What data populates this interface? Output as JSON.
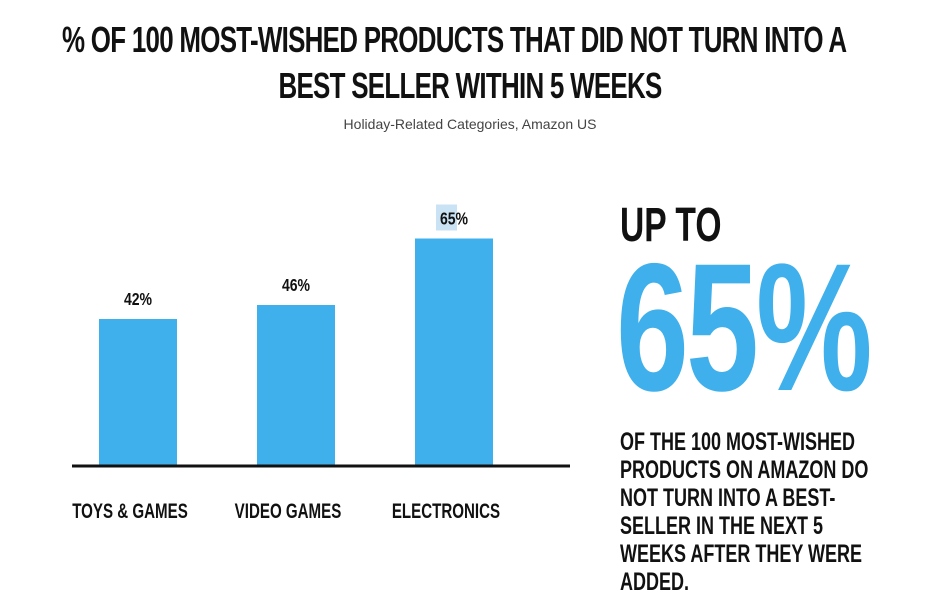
{
  "title_line_1": "% OF 100 MOST-WISHED PRODUCTS THAT DID NOT TURN INTO A",
  "title_line_2": "BEST SELLER WITHIN 5 WEEKS",
  "subtitle": "Holiday-Related Categories, Amazon US",
  "colors": {
    "bar": "#3fb0ec",
    "highlight": "#c9e3f4",
    "text": "#111111"
  },
  "chart_data": {
    "type": "bar",
    "categories": [
      "TOYS & GAMES",
      "VIDEO GAMES",
      "ELECTRONICS"
    ],
    "values": [
      42,
      46,
      65
    ],
    "value_labels": [
      "42%",
      "46%",
      "65%"
    ],
    "highlighted_label_index": 2,
    "ylim": [
      0,
      100
    ],
    "grid": false,
    "xlabel": "",
    "ylabel": ""
  },
  "callout": {
    "prefix": "UP TO",
    "value": "65%",
    "text": "OF THE 100 MOST-WISHED PRODUCTS ON AMAZON DO NOT TURN INTO A BEST-SELLER IN THE NEXT 5 WEEKS AFTER THEY WERE ADDED."
  }
}
